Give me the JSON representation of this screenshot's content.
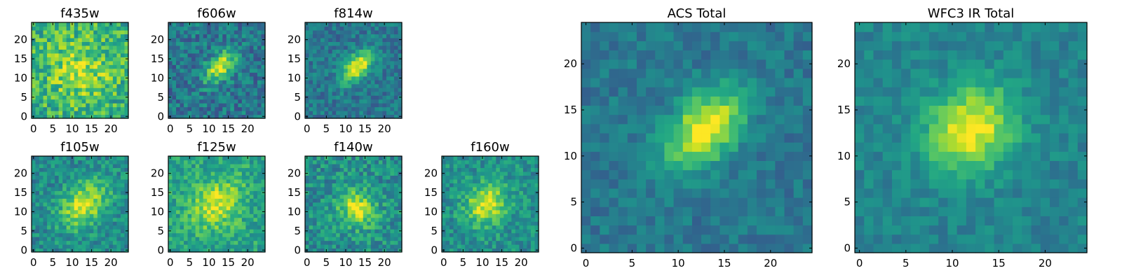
{
  "figure": {
    "description_colormap": "viridis",
    "colors": {
      "frame": "#000000",
      "background": "#ffffff"
    }
  },
  "chart_data": [
    {
      "type": "heatmap",
      "title": "f435w",
      "xlim": [
        0,
        24
      ],
      "ylim": [
        0,
        24
      ],
      "xticks": [
        "0",
        "5",
        "10",
        "15",
        "20"
      ],
      "yticks": [
        "0",
        "5",
        "10",
        "15",
        "20"
      ],
      "grid": false,
      "signal": {
        "cx": 12,
        "cy": 12,
        "sx": 6,
        "sy": 6,
        "amp": 0.25
      },
      "noise": 0.35,
      "base": 0.62,
      "seed": 11
    },
    {
      "type": "heatmap",
      "title": "f606w",
      "xlim": [
        0,
        24
      ],
      "ylim": [
        0,
        24
      ],
      "xticks": [
        "0",
        "5",
        "10",
        "15",
        "20"
      ],
      "yticks": [
        "0",
        "5",
        "10",
        "15",
        "20"
      ],
      "grid": false,
      "signal": {
        "cx": 13,
        "cy": 13,
        "sx": 3.5,
        "sy": 2.0,
        "amp": 0.55
      },
      "noise": 0.28,
      "base": 0.4,
      "seed": 23
    },
    {
      "type": "heatmap",
      "title": "f814w",
      "xlim": [
        0,
        24
      ],
      "ylim": [
        0,
        24
      ],
      "xticks": [
        "0",
        "5",
        "10",
        "15",
        "20"
      ],
      "yticks": [
        "0",
        "5",
        "10",
        "15",
        "20"
      ],
      "grid": false,
      "signal": {
        "cx": 13,
        "cy": 13,
        "sx": 3.5,
        "sy": 2.0,
        "amp": 0.6
      },
      "noise": 0.22,
      "base": 0.4,
      "seed": 37
    },
    {
      "type": "heatmap",
      "title": "f105w",
      "xlim": [
        0,
        24
      ],
      "ylim": [
        0,
        24
      ],
      "xticks": [
        "0",
        "5",
        "10",
        "15",
        "20"
      ],
      "yticks": [
        "0",
        "5",
        "10",
        "15",
        "20"
      ],
      "grid": false,
      "signal": {
        "cx": 13,
        "cy": 12,
        "sx": 5,
        "sy": 3.5,
        "amp": 0.45
      },
      "noise": 0.25,
      "base": 0.48,
      "seed": 41
    },
    {
      "type": "heatmap",
      "title": "f125w",
      "xlim": [
        0,
        24
      ],
      "ylim": [
        0,
        24
      ],
      "xticks": [
        "0",
        "5",
        "10",
        "15",
        "20"
      ],
      "yticks": [
        "0",
        "5",
        "10",
        "15",
        "20"
      ],
      "grid": false,
      "signal": {
        "cx": 12,
        "cy": 12,
        "sx": 5,
        "sy": 4,
        "amp": 0.35
      },
      "noise": 0.25,
      "base": 0.58,
      "seed": 53
    },
    {
      "type": "heatmap",
      "title": "f140w",
      "xlim": [
        0,
        24
      ],
      "ylim": [
        0,
        24
      ],
      "xticks": [
        "0",
        "5",
        "10",
        "15",
        "20"
      ],
      "yticks": [
        "0",
        "5",
        "10",
        "15",
        "20"
      ],
      "grid": false,
      "signal": {
        "cx": 13,
        "cy": 11,
        "sx": 3,
        "sy": 3.5,
        "amp": 0.45
      },
      "noise": 0.28,
      "base": 0.5,
      "seed": 67
    },
    {
      "type": "heatmap",
      "title": "f160w",
      "xlim": [
        0,
        24
      ],
      "ylim": [
        0,
        24
      ],
      "xticks": [
        "0",
        "5",
        "10",
        "15",
        "20"
      ],
      "yticks": [
        "0",
        "5",
        "10",
        "15",
        "20"
      ],
      "grid": false,
      "signal": {
        "cx": 11,
        "cy": 12,
        "sx": 4,
        "sy": 3.5,
        "amp": 0.45
      },
      "noise": 0.25,
      "base": 0.5,
      "seed": 79
    },
    {
      "type": "heatmap",
      "title": "ACS Total",
      "xlim": [
        0,
        24
      ],
      "ylim": [
        0,
        24
      ],
      "xticks": [
        "0",
        "5",
        "10",
        "15",
        "20"
      ],
      "yticks": [
        "0",
        "5",
        "10",
        "15",
        "20"
      ],
      "grid": false,
      "signal": {
        "cx": 13,
        "cy": 13,
        "sx": 3.5,
        "sy": 2.2,
        "amp": 0.62
      },
      "noise": 0.16,
      "base": 0.4,
      "seed": 101
    },
    {
      "type": "heatmap",
      "title": "WFC3 IR Total",
      "xlim": [
        0,
        24
      ],
      "ylim": [
        0,
        24
      ],
      "xticks": [
        "0",
        "5",
        "10",
        "15",
        "20"
      ],
      "yticks": [
        "0",
        "5",
        "10",
        "15",
        "20"
      ],
      "grid": false,
      "signal": {
        "cx": 12,
        "cy": 13,
        "sx": 3.5,
        "sy": 3,
        "amp": 0.55
      },
      "noise": 0.15,
      "base": 0.45,
      "seed": 131
    }
  ]
}
